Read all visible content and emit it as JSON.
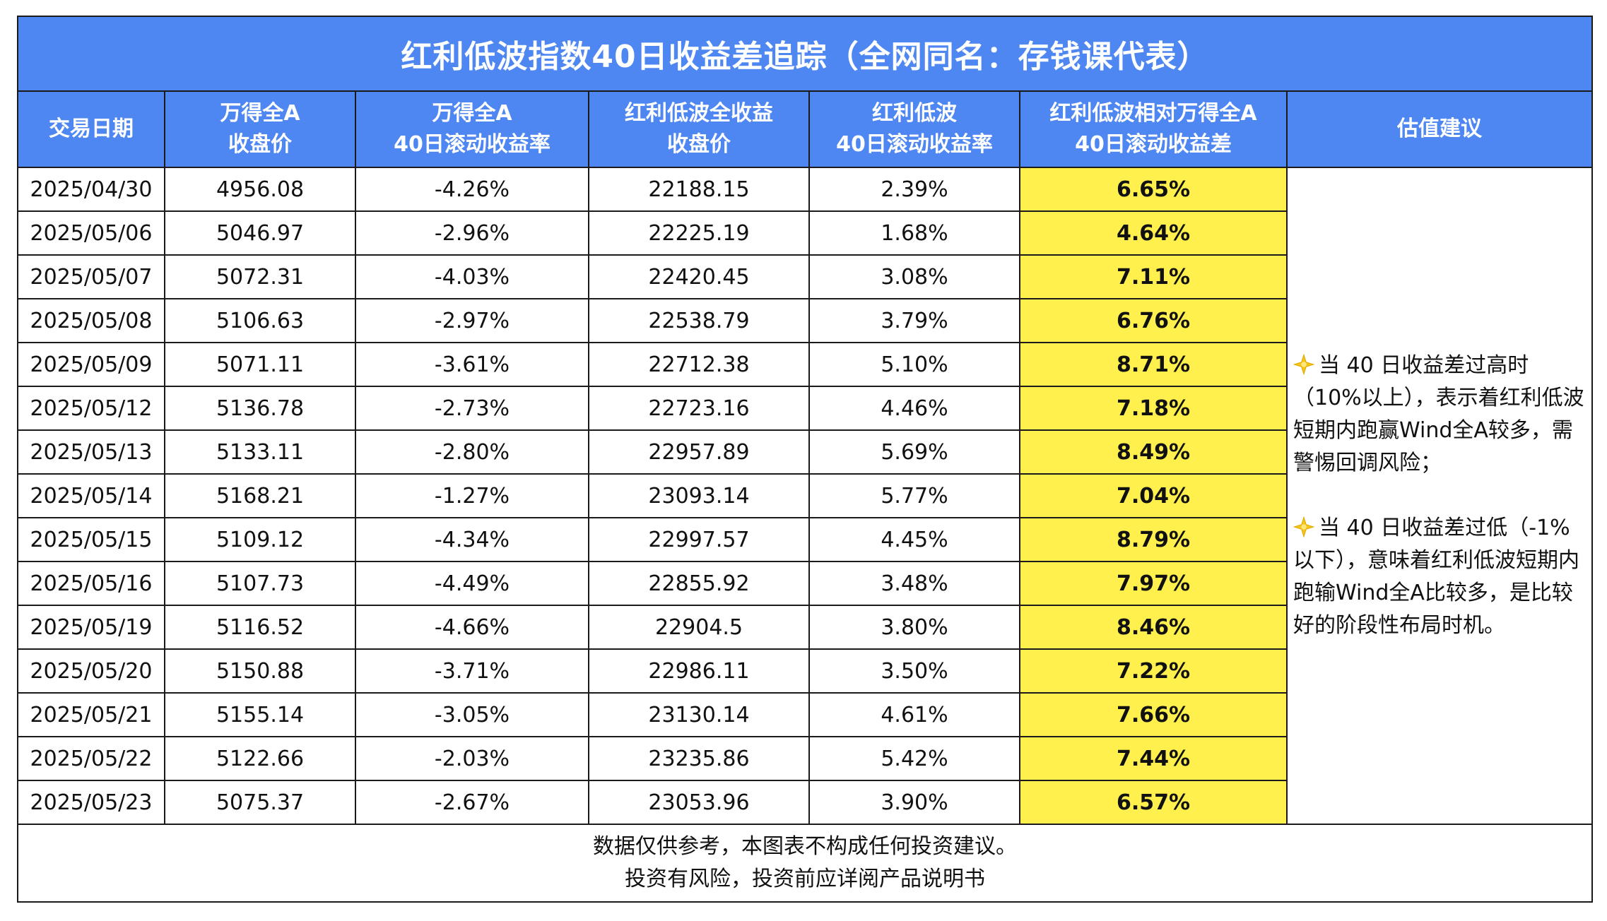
{
  "title": "红利低波指数40日收益差追踪（全网同名：存钱课代表）",
  "headers": [
    [
      "交易日期"
    ],
    [
      "万得全A",
      "收盘价"
    ],
    [
      "万得全A",
      "40日滚动收益率"
    ],
    [
      "红利低波全收益",
      "收盘价"
    ],
    [
      "红利低波",
      "40日滚动收益率"
    ],
    [
      "红利低波相对万得全A",
      "40日滚动收益差"
    ],
    [
      "估值建议"
    ]
  ],
  "rows": [
    [
      "2025/04/30",
      "4956.08",
      "-4.26%",
      "22188.15",
      "2.39%",
      "6.65%"
    ],
    [
      "2025/05/06",
      "5046.97",
      "-2.96%",
      "22225.19",
      "1.68%",
      "4.64%"
    ],
    [
      "2025/05/07",
      "5072.31",
      "-4.03%",
      "22420.45",
      "3.08%",
      "7.11%"
    ],
    [
      "2025/05/08",
      "5106.63",
      "-2.97%",
      "22538.79",
      "3.79%",
      "6.76%"
    ],
    [
      "2025/05/09",
      "5071.11",
      "-3.61%",
      "22712.38",
      "5.10%",
      "8.71%"
    ],
    [
      "2025/05/12",
      "5136.78",
      "-2.73%",
      "22723.16",
      "4.46%",
      "7.18%"
    ],
    [
      "2025/05/13",
      "5133.11",
      "-2.80%",
      "22957.89",
      "5.69%",
      "8.49%"
    ],
    [
      "2025/05/14",
      "5168.21",
      "-1.27%",
      "23093.14",
      "5.77%",
      "7.04%"
    ],
    [
      "2025/05/15",
      "5109.12",
      "-4.34%",
      "22997.57",
      "4.45%",
      "8.79%"
    ],
    [
      "2025/05/16",
      "5107.73",
      "-4.49%",
      "22855.92",
      "3.48%",
      "7.97%"
    ],
    [
      "2025/05/19",
      "5116.52",
      "-4.66%",
      "22904.5",
      "3.80%",
      "8.46%"
    ],
    [
      "2025/05/20",
      "5150.88",
      "-3.71%",
      "22986.11",
      "3.50%",
      "7.22%"
    ],
    [
      "2025/05/21",
      "5155.14",
      "-3.05%",
      "23130.14",
      "4.61%",
      "7.66%"
    ],
    [
      "2025/05/22",
      "5122.66",
      "-2.03%",
      "23235.86",
      "5.42%",
      "7.44%"
    ],
    [
      "2025/05/23",
      "5075.37",
      "-2.67%",
      "23053.96",
      "3.90%",
      "6.57%"
    ]
  ],
  "advice": {
    "icon": "sparkle-star-icon",
    "high": "当 40 日收益差过高时（10%以上），表示着红利低波短期内跑赢Wind全A较多，需警惕回调风险；",
    "low": "当 40 日收益差过低（-1%以下），意味着红利低波短期内跑输Wind全A比较多，是比较好的阶段性布局时机。"
  },
  "footer": {
    "line1": "数据仅供参考，本图表不构成任何投资建议。",
    "line2": "投资有风险，投资前应详阅产品说明书"
  },
  "colors": {
    "header_bg": "#4F87F2",
    "highlight_bg": "#FFF04D",
    "border": "#1a1a1a"
  }
}
